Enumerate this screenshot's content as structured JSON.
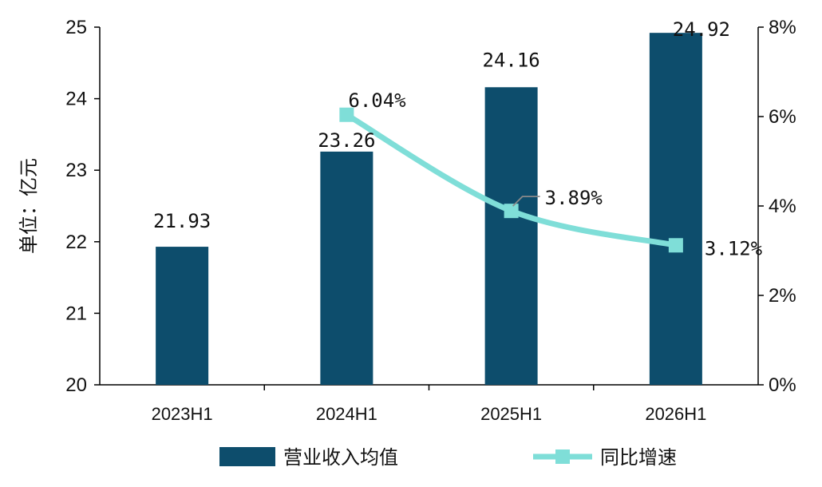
{
  "chart_data": {
    "type": "bar",
    "categories": [
      "2023H1",
      "2024H1",
      "2025H1",
      "2026H1"
    ],
    "ylabel": "单位：亿元",
    "ylim": [
      20,
      25
    ],
    "y_ticks": [
      "20",
      "21",
      "22",
      "23",
      "24",
      "25"
    ],
    "y2lim": [
      0,
      8
    ],
    "y2_ticks": [
      "0%",
      "2%",
      "4%",
      "6%",
      "8%"
    ],
    "legend_position": "bottom",
    "grid": false,
    "series": [
      {
        "name": "营业收入均值",
        "type": "bar",
        "axis": "left",
        "color": "#0d4d6c",
        "values": [
          21.93,
          23.26,
          24.16,
          24.92
        ],
        "labels": [
          "21.93",
          "23.26",
          "24.16",
          "24.92"
        ]
      },
      {
        "name": "同比增速",
        "type": "line",
        "axis": "right",
        "color": "#7fded8",
        "marker": "square",
        "values": [
          null,
          6.04,
          3.89,
          3.12
        ],
        "labels": [
          "",
          "6.04%",
          "3.89%",
          "3.12%"
        ]
      }
    ]
  }
}
